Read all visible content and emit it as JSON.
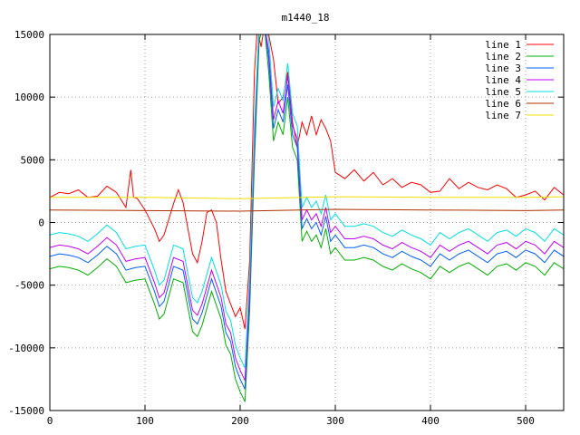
{
  "chart_data": {
    "type": "line",
    "title": "m1440_18",
    "xlabel": "",
    "ylabel": "",
    "xlim": [
      0,
      540
    ],
    "ylim": [
      -15000,
      15000
    ],
    "x_ticks": [
      0,
      100,
      200,
      300,
      400,
      500
    ],
    "y_ticks": [
      -15000,
      -10000,
      -5000,
      0,
      5000,
      10000,
      15000
    ],
    "grid": true,
    "legend_position": "top-right",
    "series": [
      {
        "name": "line 1",
        "color": "#ff0000",
        "x": [
          0,
          10,
          20,
          30,
          40,
          50,
          60,
          70,
          80,
          85,
          88,
          92,
          100,
          110,
          115,
          120,
          130,
          135,
          140,
          150,
          155,
          160,
          165,
          170,
          175,
          180,
          185,
          190,
          195,
          200,
          205,
          210,
          215,
          218,
          222,
          226,
          230,
          235,
          240,
          245,
          250,
          255,
          260,
          265,
          270,
          275,
          280,
          285,
          290,
          295,
          300,
          310,
          320,
          330,
          340,
          350,
          360,
          370,
          380,
          390,
          400,
          410,
          420,
          430,
          440,
          450,
          460,
          470,
          480,
          490,
          500,
          510,
          520,
          530,
          540
        ],
        "y": [
          2000,
          2400,
          2300,
          2600,
          2000,
          2100,
          2900,
          2400,
          1200,
          4200,
          2000,
          1900,
          1000,
          -500,
          -1500,
          -1000,
          1500,
          2600,
          1600,
          -2500,
          -3200,
          -1500,
          800,
          1000,
          0,
          -3000,
          -5500,
          -6500,
          -7500,
          -6800,
          -8500,
          -3000,
          12000,
          15500,
          14000,
          16000,
          15000,
          13000,
          9500,
          10000,
          12000,
          8000,
          6000,
          8000,
          7000,
          8500,
          7000,
          8200,
          7500,
          6500,
          4000,
          3500,
          4200,
          3300,
          4000,
          3000,
          3500,
          2800,
          3200,
          3000,
          2400,
          2500,
          3500,
          2700,
          3200,
          2800,
          2600,
          3000,
          2700,
          2000,
          2200,
          2500,
          1800,
          2800,
          2200
        ]
      },
      {
        "name": "line 2",
        "color": "#00b000",
        "x": [
          0,
          10,
          20,
          30,
          40,
          50,
          60,
          70,
          80,
          90,
          100,
          110,
          115,
          120,
          130,
          140,
          150,
          155,
          160,
          170,
          180,
          185,
          190,
          195,
          200,
          205,
          210,
          215,
          220,
          225,
          230,
          235,
          240,
          245,
          250,
          255,
          260,
          265,
          270,
          275,
          280,
          285,
          290,
          295,
          300,
          310,
          320,
          330,
          340,
          350,
          360,
          370,
          380,
          390,
          400,
          410,
          420,
          430,
          440,
          450,
          460,
          470,
          480,
          490,
          500,
          510,
          520,
          530,
          540
        ],
        "y": [
          -3700,
          -3500,
          -3600,
          -3800,
          -4200,
          -3600,
          -2900,
          -3500,
          -4800,
          -4600,
          -4500,
          -6500,
          -7700,
          -7300,
          -4500,
          -4800,
          -8700,
          -9100,
          -8200,
          -5500,
          -7700,
          -9800,
          -10500,
          -12500,
          -13500,
          -14300,
          -7000,
          5000,
          14500,
          16000,
          12000,
          6500,
          8000,
          7000,
          10000,
          6000,
          5000,
          -1500,
          -700,
          -1500,
          -1000,
          -2000,
          -500,
          -2500,
          -2000,
          -3000,
          -3000,
          -2800,
          -3000,
          -3500,
          -3800,
          -3300,
          -3700,
          -4000,
          -4500,
          -3500,
          -4000,
          -3500,
          -3200,
          -3700,
          -4200,
          -3500,
          -3300,
          -3800,
          -3200,
          -3500,
          -4200,
          -3200,
          -3700
        ]
      },
      {
        "name": "line 3",
        "color": "#0060ff",
        "x": [
          0,
          10,
          20,
          30,
          40,
          50,
          60,
          70,
          80,
          90,
          100,
          110,
          115,
          120,
          130,
          140,
          150,
          155,
          160,
          170,
          180,
          185,
          190,
          195,
          200,
          205,
          210,
          215,
          220,
          225,
          230,
          235,
          240,
          245,
          250,
          255,
          260,
          265,
          270,
          275,
          280,
          285,
          290,
          295,
          300,
          310,
          320,
          330,
          340,
          350,
          360,
          370,
          380,
          390,
          400,
          410,
          420,
          430,
          440,
          450,
          460,
          470,
          480,
          490,
          500,
          510,
          520,
          530,
          540
        ],
        "y": [
          -2700,
          -2500,
          -2600,
          -2800,
          -3200,
          -2600,
          -1900,
          -2500,
          -3800,
          -3600,
          -3500,
          -5500,
          -6700,
          -6300,
          -3500,
          -3800,
          -7700,
          -8100,
          -7200,
          -4500,
          -6700,
          -8800,
          -9500,
          -11500,
          -12500,
          -13300,
          -6000,
          6000,
          15500,
          16000,
          13000,
          7500,
          9000,
          8000,
          11000,
          7000,
          6000,
          -500,
          300,
          -500,
          0,
          -1000,
          500,
          -1500,
          -1000,
          -2000,
          -2000,
          -1800,
          -2000,
          -2500,
          -2800,
          -2300,
          -2700,
          -3000,
          -3500,
          -2500,
          -3000,
          -2500,
          -2200,
          -2700,
          -3200,
          -2500,
          -2300,
          -2800,
          -2200,
          -2500,
          -3200,
          -2200,
          -2700
        ]
      },
      {
        "name": "line 4",
        "color": "#c000ff",
        "x": [
          0,
          10,
          20,
          30,
          40,
          50,
          60,
          70,
          80,
          90,
          100,
          110,
          115,
          120,
          130,
          140,
          150,
          155,
          160,
          170,
          180,
          185,
          190,
          195,
          200,
          205,
          210,
          215,
          220,
          225,
          230,
          235,
          240,
          245,
          250,
          255,
          260,
          265,
          270,
          275,
          280,
          285,
          290,
          295,
          300,
          310,
          320,
          330,
          340,
          350,
          360,
          370,
          380,
          390,
          400,
          410,
          420,
          430,
          440,
          450,
          460,
          470,
          480,
          490,
          500,
          510,
          520,
          530,
          540
        ],
        "y": [
          -2000,
          -1800,
          -1900,
          -2100,
          -2500,
          -1900,
          -1200,
          -1800,
          -3100,
          -2900,
          -2800,
          -4800,
          -6000,
          -5600,
          -2800,
          -3100,
          -7000,
          -7400,
          -6500,
          -3800,
          -6000,
          -8100,
          -8800,
          -10800,
          -11800,
          -12600,
          -5300,
          6700,
          16000,
          16000,
          13700,
          8200,
          9700,
          8700,
          11700,
          7700,
          6700,
          200,
          1000,
          200,
          700,
          -300,
          1200,
          -800,
          -300,
          -1300,
          -1300,
          -1100,
          -1300,
          -1800,
          -2100,
          -1600,
          -2000,
          -2300,
          -2800,
          -1800,
          -2300,
          -1800,
          -1500,
          -2000,
          -2500,
          -1800,
          -1600,
          -2100,
          -1500,
          -1800,
          -2500,
          -1500,
          -2000
        ]
      },
      {
        "name": "line 5",
        "color": "#00e0e0",
        "x": [
          0,
          10,
          20,
          30,
          40,
          50,
          60,
          70,
          80,
          90,
          100,
          110,
          115,
          120,
          130,
          140,
          150,
          155,
          160,
          170,
          180,
          185,
          190,
          195,
          200,
          205,
          210,
          215,
          220,
          225,
          230,
          235,
          240,
          245,
          250,
          255,
          260,
          265,
          270,
          275,
          280,
          285,
          290,
          295,
          300,
          310,
          320,
          330,
          340,
          350,
          360,
          370,
          380,
          390,
          400,
          410,
          420,
          430,
          440,
          450,
          460,
          470,
          480,
          490,
          500,
          510,
          520,
          530,
          540
        ],
        "y": [
          -1000,
          -800,
          -900,
          -1100,
          -1500,
          -900,
          -200,
          -800,
          -2100,
          -1900,
          -1800,
          -3800,
          -5000,
          -4600,
          -1800,
          -2100,
          -6000,
          -6400,
          -5500,
          -2800,
          -5000,
          -7100,
          -7800,
          -9800,
          -10800,
          -11600,
          -4300,
          7700,
          16000,
          16000,
          14700,
          9200,
          10700,
          9700,
          12700,
          8700,
          7700,
          1200,
          2000,
          1200,
          1700,
          700,
          2200,
          200,
          700,
          -300,
          -300,
          -100,
          -300,
          -800,
          -1100,
          -600,
          -1000,
          -1300,
          -1800,
          -800,
          -1300,
          -800,
          -500,
          -1000,
          -1500,
          -800,
          -600,
          -1100,
          -500,
          -800,
          -1500,
          -500,
          -1000
        ]
      },
      {
        "name": "line 6",
        "color": "#b03000",
        "x": [
          0,
          100,
          200,
          300,
          400,
          500,
          540
        ],
        "y": [
          1000,
          950,
          900,
          1050,
          1000,
          950,
          1000
        ]
      },
      {
        "name": "line 7",
        "color": "#f0e000",
        "x": [
          0,
          100,
          200,
          300,
          400,
          500,
          540
        ],
        "y": [
          2000,
          2000,
          1900,
          2050,
          2000,
          2000,
          2050
        ]
      }
    ]
  }
}
